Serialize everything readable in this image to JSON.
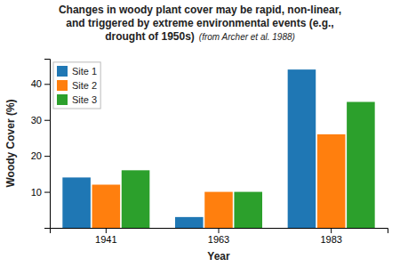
{
  "chart_data": {
    "type": "bar",
    "title": [
      "Changes in woody plant cover may be rapid, non-linear,",
      "and triggered by extreme environmental events (e.g.,",
      "drought of 1950s)"
    ],
    "annotations": [
      "(from Archer et al. 1988)"
    ],
    "xlabel": "Year",
    "ylabel": "Woody Cover (%)",
    "categories": [
      "1941",
      "1963",
      "1983"
    ],
    "series": [
      {
        "name": "Site 1",
        "values": [
          14,
          3,
          44
        ]
      },
      {
        "name": "Site 2",
        "values": [
          12,
          10,
          26
        ]
      },
      {
        "name": "Site 3",
        "values": [
          16,
          10,
          35
        ]
      }
    ],
    "ylim": [
      0,
      47
    ],
    "yticks": [
      10,
      20,
      30,
      40
    ],
    "legend": "upper-left",
    "grid": false
  }
}
